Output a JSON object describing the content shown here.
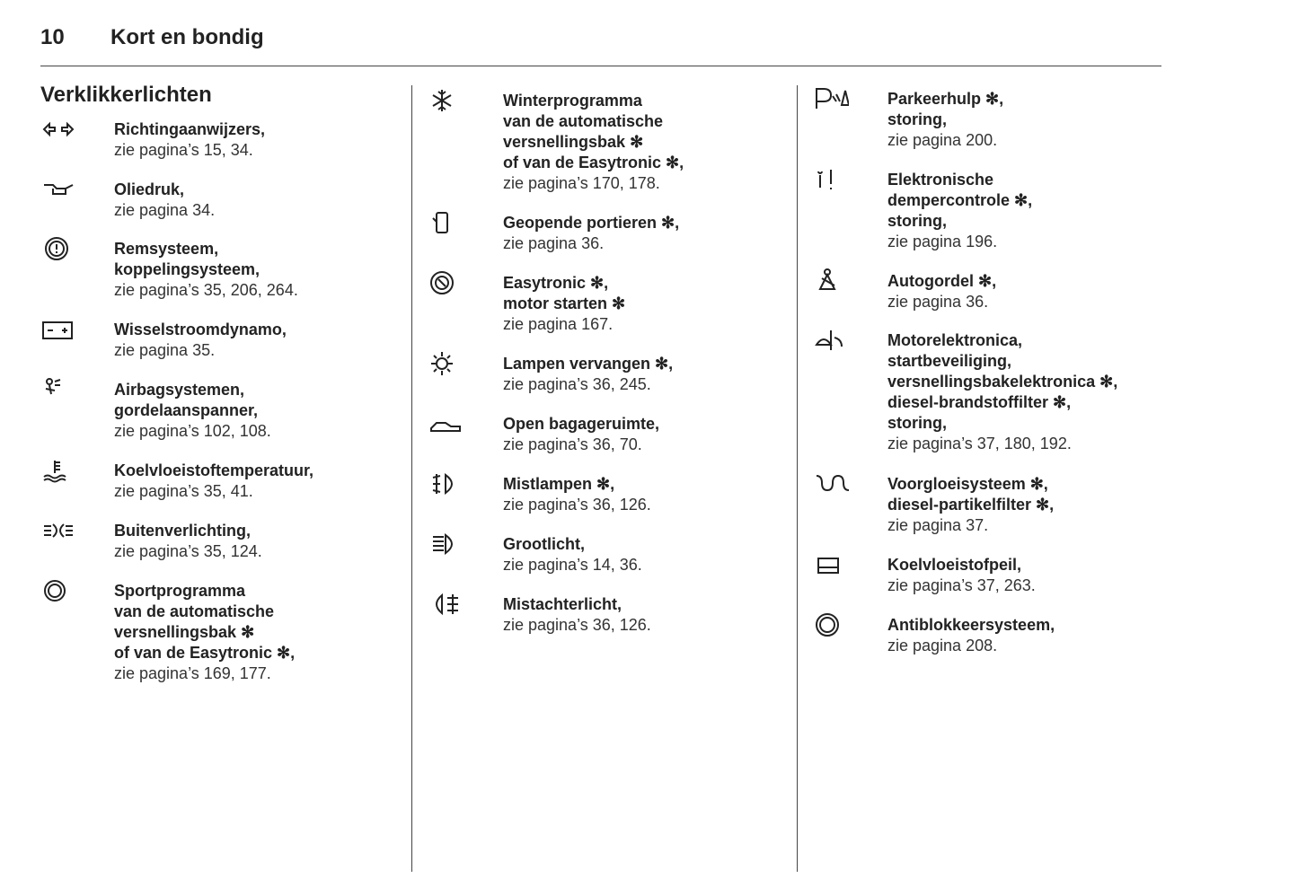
{
  "header": {
    "page_number": "10",
    "title": "Kort en bondig"
  },
  "section_title": "Verklikkerlichten",
  "columns": [
    [
      {
        "lines": [
          "Richtingaanwijzers,"
        ],
        "ref": "zie pagina’s 15, 34."
      },
      {
        "lines": [
          "Oliedruk,"
        ],
        "ref": "zie pagina 34."
      },
      {
        "lines": [
          "Remsysteem,",
          "koppelingsysteem,"
        ],
        "ref": "zie pagina’s 35, 206, 264."
      },
      {
        "lines": [
          "Wisselstroomdynamo,"
        ],
        "ref": "zie pagina 35."
      },
      {
        "lines": [
          "Airbagsystemen,",
          "gordelaanspanner,"
        ],
        "ref": "zie pagina’s 102, 108."
      },
      {
        "lines": [
          "Koelvloeistoftemperatuur,"
        ],
        "ref": "zie pagina’s 35, 41."
      },
      {
        "lines": [
          "Buitenverlichting,"
        ],
        "ref": "zie pagina’s 35, 124."
      },
      {
        "lines": [
          "Sportprogramma",
          "van de automatische",
          "versnellingsbak ✻",
          "of van de Easytronic ✻,"
        ],
        "ref": "zie pagina’s 169, 177."
      }
    ],
    [
      {
        "lines": [
          "Winterprogramma",
          "van de automatische",
          "versnellingsbak ✻",
          "of van de Easytronic ✻,"
        ],
        "ref": "zie pagina’s 170, 178."
      },
      {
        "lines": [
          "Geopende portieren ✻,"
        ],
        "ref": "zie pagina 36."
      },
      {
        "lines": [
          "Easytronic ✻,",
          "motor starten ✻"
        ],
        "ref": "zie pagina 167."
      },
      {
        "lines": [
          "Lampen vervangen ✻,"
        ],
        "ref": "zie pagina’s 36, 245."
      },
      {
        "lines": [
          "Open bagageruimte,"
        ],
        "ref": "zie pagina’s 36, 70."
      },
      {
        "lines": [
          "Mistlampen ✻,"
        ],
        "ref": "zie pagina’s 36, 126."
      },
      {
        "lines": [
          "Grootlicht,"
        ],
        "ref": "zie pagina’s 14, 36."
      },
      {
        "lines": [
          "Mistachterlicht,"
        ],
        "ref": "zie pagina’s 36, 126."
      }
    ],
    [
      {
        "lines": [
          "Parkeerhulp ✻,",
          "storing,"
        ],
        "ref": "zie pagina 200."
      },
      {
        "lines": [
          "Elektronische",
          "dempercontrole ✻,",
          "storing,"
        ],
        "ref": "zie pagina 196."
      },
      {
        "lines": [
          "Autogordel ✻,"
        ],
        "ref": "zie pagina 36."
      },
      {
        "lines": [
          "Motorelektronica,",
          "startbeveiliging,",
          "versnellingsbakelektronica ✻,",
          "diesel-brandstoffilter ✻,",
          "storing,"
        ],
        "ref": "zie pagina’s 37, 180, 192."
      },
      {
        "lines": [
          "Voorgloeisysteem ✻,",
          "diesel-partikelfilter ✻,"
        ],
        "ref": "zie pagina 37."
      },
      {
        "lines": [
          "Koelvloeistofpeil,"
        ],
        "ref": "zie pagina’s 37, 263."
      },
      {
        "lines": [
          "Antiblokkeersysteem,"
        ],
        "ref": "zie pagina 208."
      }
    ]
  ]
}
